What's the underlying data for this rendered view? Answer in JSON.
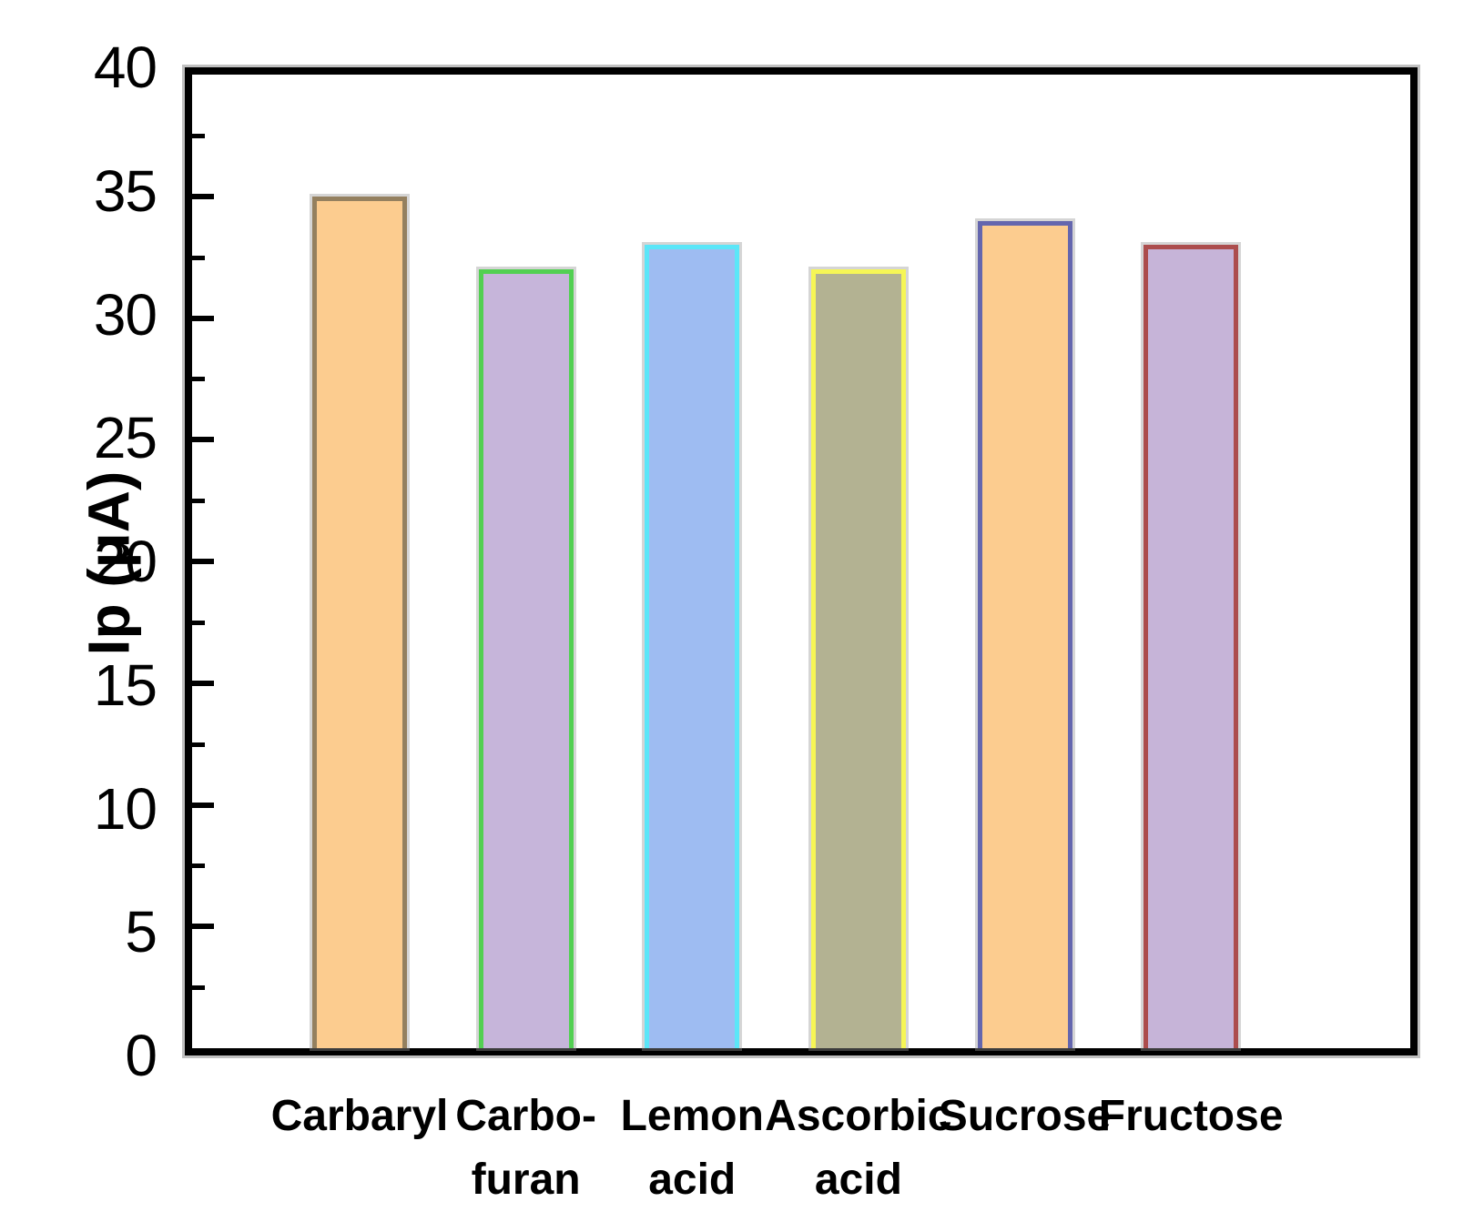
{
  "chart_data": {
    "type": "bar",
    "title": "",
    "xlabel": "",
    "ylabel": "Ip (μA)",
    "ylim": [
      0,
      40
    ],
    "ytick_labels": [
      0,
      5,
      10,
      15,
      20,
      25,
      30,
      35,
      40
    ],
    "ytick_major_interval": 5,
    "ytick_minor_interval": 2.5,
    "grid": false,
    "legend_position": "none",
    "axis_color": "#000000",
    "background": "#FFFFFF",
    "categories": [
      "Carbaryl",
      "Carbofuran",
      "Lemon acid",
      "Ascorbic acid",
      "Sucrose",
      "Fructose"
    ],
    "values": [
      35,
      32,
      33,
      32,
      34,
      33
    ],
    "bars": [
      {
        "category": "Carbaryl",
        "label_lines": [
          "Carbaryl"
        ],
        "value": 35,
        "fill": "#FCCC8F",
        "border": "#94805F"
      },
      {
        "category": "Carbofuran",
        "label_lines": [
          "Carbo-",
          "furan"
        ],
        "value": 32,
        "fill": "#C6B5DA",
        "border": "#52D052"
      },
      {
        "category": "Lemon acid",
        "label_lines": [
          "Lemon",
          "acid"
        ],
        "value": 33,
        "fill": "#9EBCF2",
        "border": "#5BE6F8"
      },
      {
        "category": "Ascorbic acid",
        "label_lines": [
          "Ascorbic",
          "acid"
        ],
        "value": 32,
        "fill": "#B3B292",
        "border": "#F6F655"
      },
      {
        "category": "Sucrose",
        "label_lines": [
          "Sucrose"
        ],
        "value": 34,
        "fill": "#FCCC8F",
        "border": "#6466AE"
      },
      {
        "category": "Fructose",
        "label_lines": [
          "Fructose"
        ],
        "value": 33,
        "fill": "#C6B4D8",
        "border": "#AC4D4D"
      }
    ]
  }
}
